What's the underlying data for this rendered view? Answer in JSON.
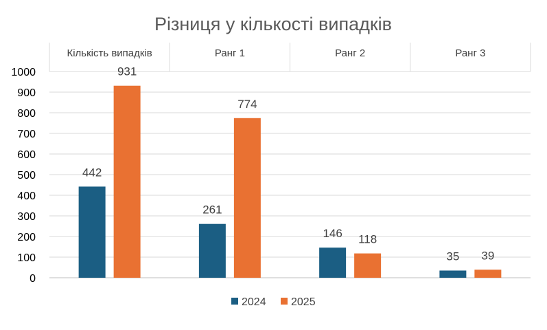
{
  "chart_data": {
    "type": "bar",
    "title": "Різниця у кількості випадків",
    "xlabel": "",
    "ylabel": "",
    "categories": [
      "Кількість випадків",
      "Ранг 1",
      "Ранг 2",
      "Ранг 3"
    ],
    "category_axis_position": "top",
    "series": [
      {
        "name": "2024",
        "values": [
          442,
          261,
          146,
          35
        ],
        "color": "#1b5e83"
      },
      {
        "name": "2025",
        "values": [
          931,
          774,
          118,
          39
        ],
        "color": "#e97132"
      }
    ],
    "ylim": [
      0,
      1000
    ],
    "yticks": [
      0,
      100,
      200,
      300,
      400,
      500,
      600,
      700,
      800,
      900,
      1000
    ],
    "grid": true,
    "data_labels": true,
    "legend_position": "bottom"
  }
}
